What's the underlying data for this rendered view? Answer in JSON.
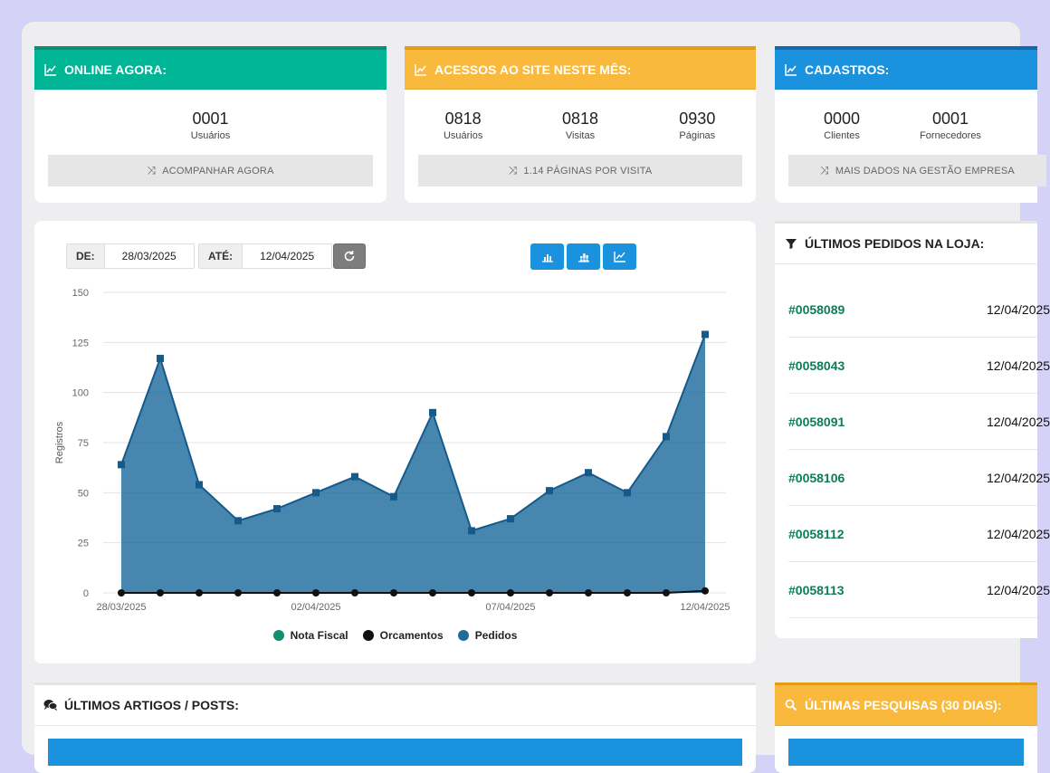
{
  "online": {
    "title": "ONLINE AGORA:",
    "stats": [
      {
        "num": "0001",
        "label": "Usuários"
      }
    ],
    "action": "ACOMPANHAR AGORA"
  },
  "acessos": {
    "title": "ACESSOS AO SITE NESTE MÊS:",
    "stats": [
      {
        "num": "0818",
        "label": "Usuários"
      },
      {
        "num": "0818",
        "label": "Visitas"
      },
      {
        "num": "0930",
        "label": "Páginas"
      }
    ],
    "action": "1.14 PÁGINAS POR VISITA"
  },
  "cadastros": {
    "title": "CADASTROS:",
    "stats": [
      {
        "num": "0000",
        "label": "Clientes"
      },
      {
        "num": "0001",
        "label": "Fornecedores"
      }
    ],
    "action": "MAIS DADOS NA GESTÃO EMPRESA"
  },
  "filter": {
    "de_label": "DE:",
    "de_value": "28/03/2025",
    "ate_label": "ATÉ:",
    "ate_value": "12/04/2025"
  },
  "orders": {
    "title": "ÚLTIMOS PEDIDOS NA LOJA:",
    "items": [
      {
        "id": "#0058089",
        "date": "12/04/2025"
      },
      {
        "id": "#0058043",
        "date": "12/04/2025"
      },
      {
        "id": "#0058091",
        "date": "12/04/2025"
      },
      {
        "id": "#0058106",
        "date": "12/04/2025"
      },
      {
        "id": "#0058112",
        "date": "12/04/2025"
      },
      {
        "id": "#0058113",
        "date": "12/04/2025"
      }
    ]
  },
  "artigos": {
    "title": "ÚLTIMOS ARTIGOS / POSTS:"
  },
  "pesquisas": {
    "title": "ÚLTIMAS PESQUISAS (30 DIAS):"
  },
  "colors": {
    "green": "#00b596",
    "yellow": "#f9b93c",
    "blue": "#1b92de",
    "pedidos": "#1f6b9e",
    "order_id": "#0e7c57"
  },
  "chart_data": {
    "type": "area",
    "ylabel": "Registros",
    "ylim": [
      0,
      150
    ],
    "yticks": [
      0,
      25,
      50,
      75,
      100,
      125,
      150
    ],
    "x": [
      "28/03/2025",
      "29/03/2025",
      "30/03/2025",
      "31/03/2025",
      "01/04/2025",
      "02/04/2025",
      "03/04/2025",
      "04/04/2025",
      "05/04/2025",
      "06/04/2025",
      "07/04/2025",
      "08/04/2025",
      "09/04/2025",
      "10/04/2025",
      "11/04/2025",
      "12/04/2025"
    ],
    "xtick_labels": [
      "28/03/2025",
      "02/04/2025",
      "07/04/2025",
      "12/04/2025"
    ],
    "grid": true,
    "legend_position": "bottom",
    "series": [
      {
        "name": "Nota Fiscal",
        "color": "#0f8f6e",
        "values": [
          0,
          0,
          0,
          0,
          0,
          0,
          0,
          0,
          0,
          0,
          0,
          0,
          0,
          0,
          0,
          0
        ]
      },
      {
        "name": "Orcamentos",
        "color": "#111111",
        "values": [
          0,
          0,
          0,
          0,
          0,
          0,
          0,
          0,
          0,
          0,
          0,
          0,
          0,
          0,
          0,
          1
        ]
      },
      {
        "name": "Pedidos",
        "color": "#1f6b9e",
        "values": [
          64,
          117,
          54,
          36,
          42,
          50,
          58,
          48,
          90,
          31,
          37,
          51,
          60,
          50,
          78,
          129
        ]
      }
    ]
  }
}
